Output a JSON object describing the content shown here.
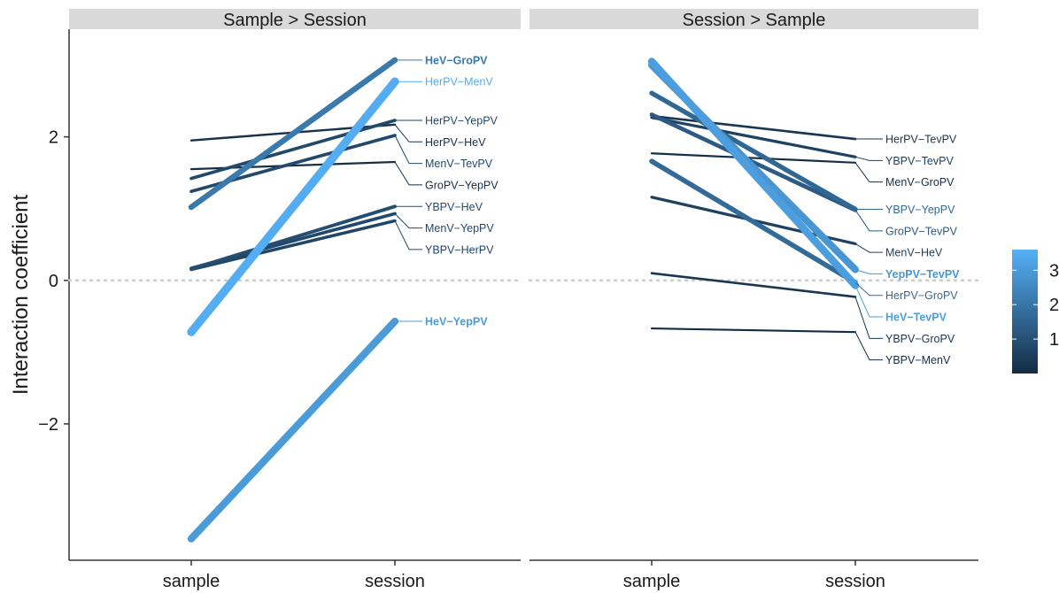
{
  "chart_data": {
    "type": "line",
    "ylabel": "Interaction coefficient",
    "xlabel": "",
    "categories": [
      "sample",
      "session"
    ],
    "ylim": [
      -3.9,
      3.5
    ],
    "yticks": [
      {
        "value": -2,
        "label": "−2"
      },
      {
        "value": 0,
        "label": "0"
      },
      {
        "value": 2,
        "label": "2"
      }
    ],
    "reference_line": {
      "value": 0,
      "style": "dotted",
      "color": "#cccccc"
    },
    "color_scale": {
      "low_color": "#132b43",
      "high_color": "#56b1f7",
      "min": 0,
      "max": 3.6,
      "breaks": [
        {
          "value": 1,
          "label": "1"
        },
        {
          "value": 2,
          "label": "2"
        },
        {
          "value": 3,
          "label": "3"
        }
      ]
    },
    "panels": [
      {
        "title": "Sample > Session",
        "series": [
          {
            "name": "HeV−GroPV",
            "values": [
              1.02,
              3.07
            ],
            "weight": 2.1,
            "bold": true
          },
          {
            "name": "HerPV−MenV",
            "values": [
              -0.72,
              2.77
            ],
            "weight": 3.5,
            "bold": false
          },
          {
            "name": "HerPV−YepPV",
            "values": [
              1.42,
              2.23
            ],
            "weight": 0.8,
            "bold": false
          },
          {
            "name": "HerPV−HeV",
            "values": [
              1.95,
              2.17
            ],
            "weight": 0.2,
            "bold": false
          },
          {
            "name": "MenV−TevPV",
            "values": [
              1.24,
              2.02
            ],
            "weight": 0.8,
            "bold": false
          },
          {
            "name": "GroPV−YepPV",
            "values": [
              1.55,
              1.65
            ],
            "weight": 0.1,
            "bold": false
          },
          {
            "name": "YBPV−HeV",
            "values": [
              0.16,
              1.03
            ],
            "weight": 0.9,
            "bold": false
          },
          {
            "name": "MenV−YepPV",
            "values": [
              0.17,
              0.93
            ],
            "weight": 0.8,
            "bold": false
          },
          {
            "name": "YBPV−HerPV",
            "values": [
              0.15,
              0.83
            ],
            "weight": 0.7,
            "bold": false
          },
          {
            "name": "HeV−YepPV",
            "values": [
              -3.6,
              -0.57
            ],
            "weight": 3.0,
            "bold": true
          }
        ]
      },
      {
        "title": "Session > Sample",
        "series": [
          {
            "name": "HerPV−TevPV",
            "values": [
              2.29,
              1.97
            ],
            "weight": 0.3,
            "bold": false
          },
          {
            "name": "YBPV−TevPV",
            "values": [
              2.27,
              1.72
            ],
            "weight": 0.6,
            "bold": false
          },
          {
            "name": "MenV−GroPV",
            "values": [
              1.77,
              1.64
            ],
            "weight": 0.1,
            "bold": false
          },
          {
            "name": "YBPV−YepPV",
            "values": [
              2.61,
              0.99
            ],
            "weight": 1.6,
            "bold": false
          },
          {
            "name": "GroPV−TevPV",
            "values": [
              2.31,
              0.98
            ],
            "weight": 1.3,
            "bold": false
          },
          {
            "name": "MenV−HeV",
            "values": [
              1.16,
              0.51
            ],
            "weight": 0.6,
            "bold": false
          },
          {
            "name": "YepPV−TevPV",
            "values": [
              3.0,
              0.15
            ],
            "weight": 2.85,
            "bold": true
          },
          {
            "name": "HerPV−GroPV",
            "values": [
              1.66,
              -0.03
            ],
            "weight": 1.7,
            "bold": false
          },
          {
            "name": "HeV−TevPV",
            "values": [
              3.05,
              -0.07
            ],
            "weight": 3.1,
            "bold": true
          },
          {
            "name": "YBPV−GroPV",
            "values": [
              0.1,
              -0.23
            ],
            "weight": 0.3,
            "bold": false
          },
          {
            "name": "YBPV−MenV",
            "values": [
              -0.67,
              -0.72
            ],
            "weight": 0.05,
            "bold": false
          }
        ]
      }
    ]
  }
}
